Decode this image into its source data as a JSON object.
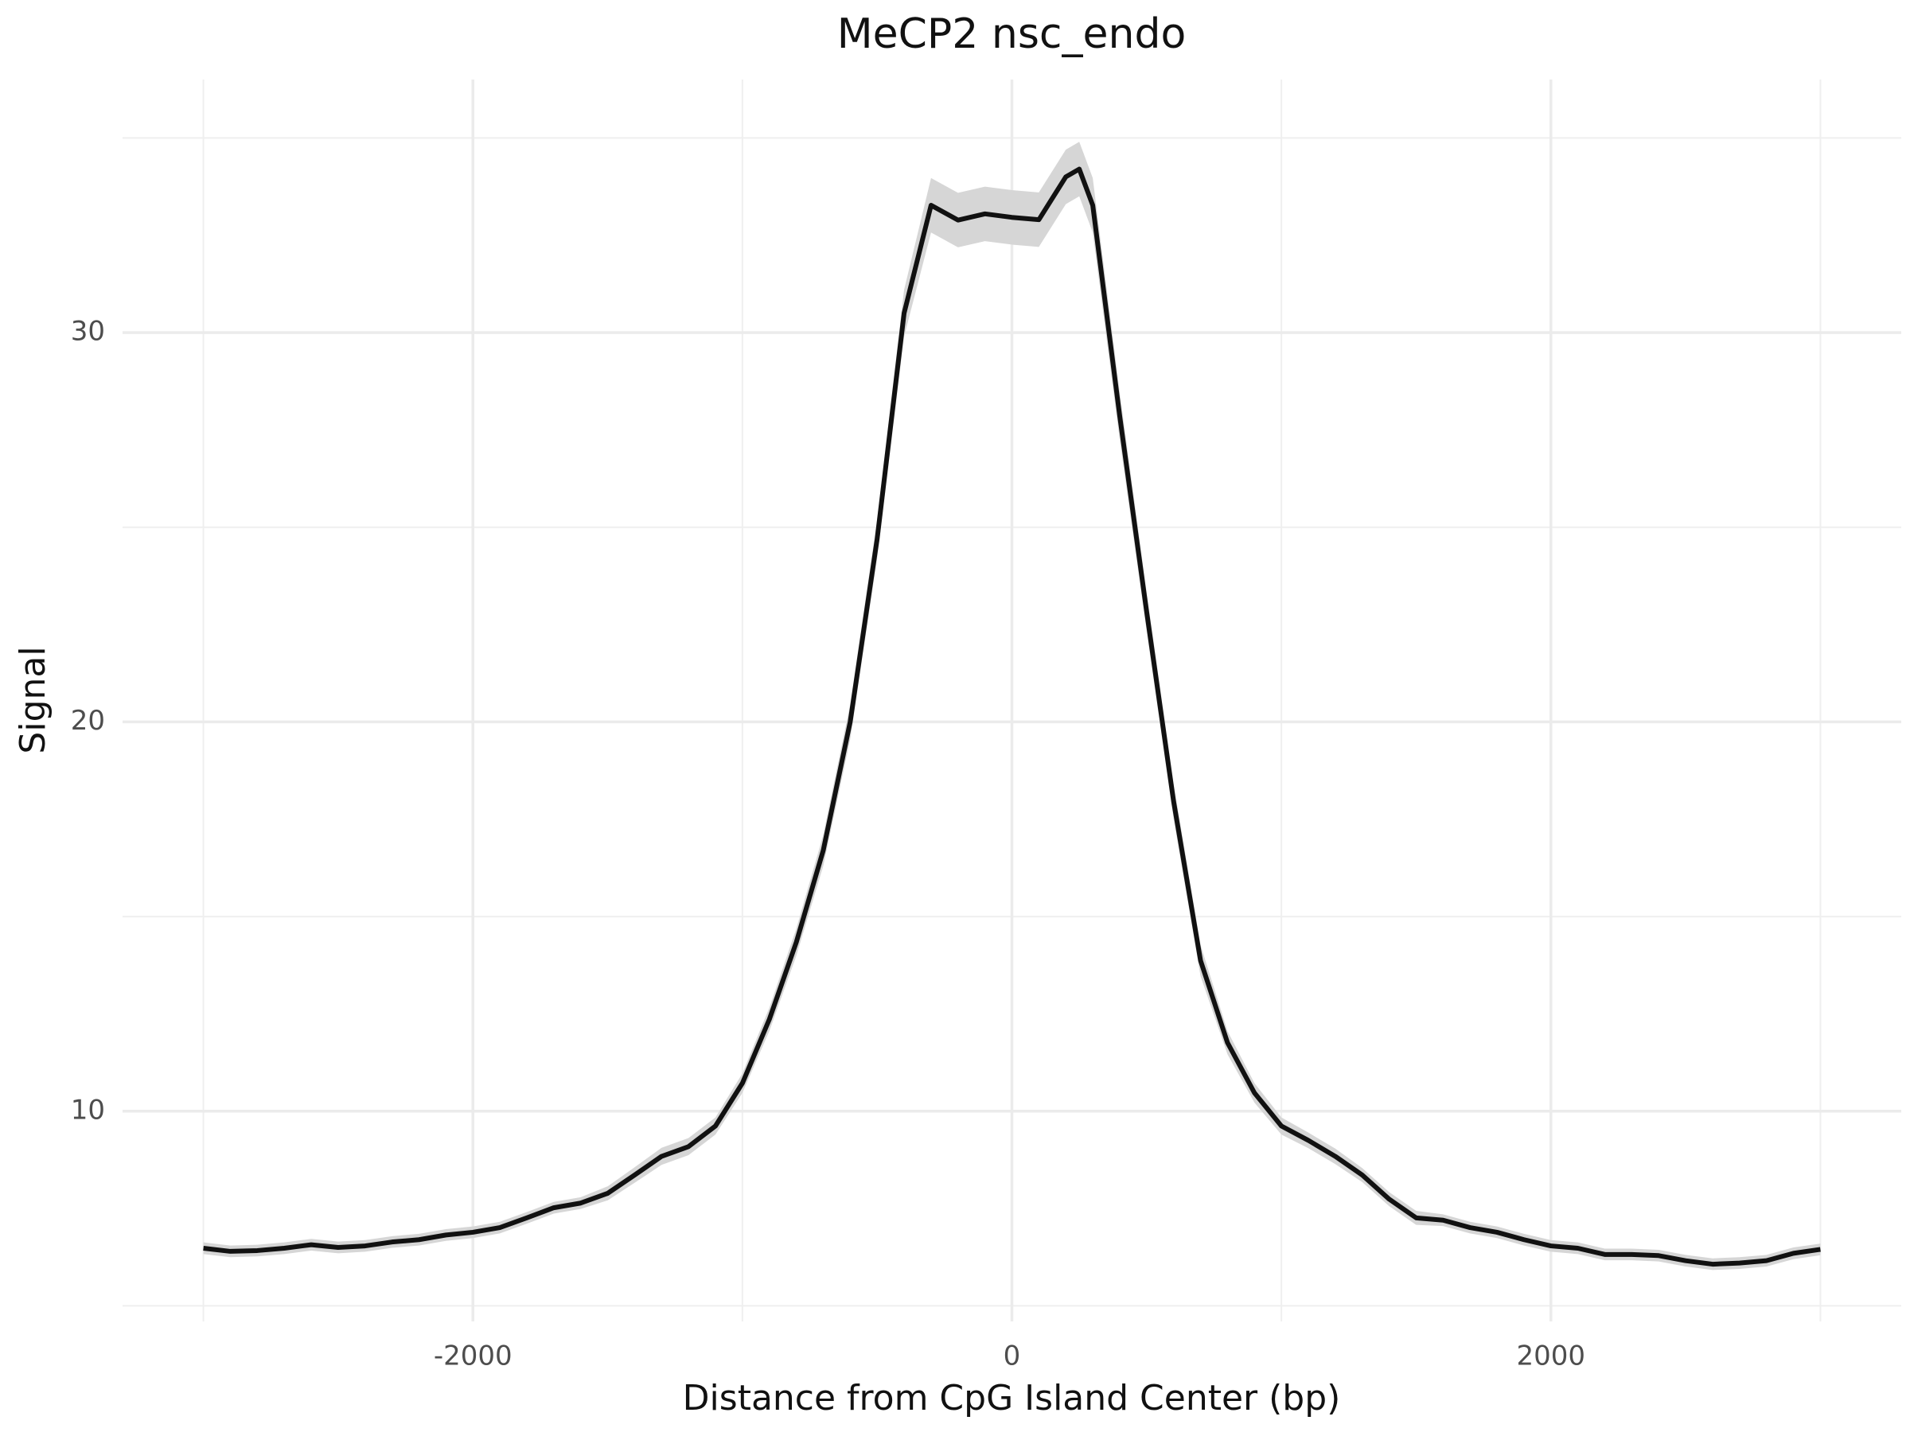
{
  "chart_data": {
    "type": "line",
    "title": "MeCP2 nsc_endo",
    "x_label": "Distance from CpG Island Center (bp)",
    "y_label": "Signal",
    "x": [
      -3000,
      -2900,
      -2800,
      -2700,
      -2600,
      -2500,
      -2400,
      -2300,
      -2200,
      -2100,
      -2000,
      -1900,
      -1800,
      -1700,
      -1600,
      -1500,
      -1400,
      -1300,
      -1200,
      -1100,
      -1000,
      -900,
      -800,
      -700,
      -600,
      -500,
      -400,
      -300,
      -200,
      -100,
      0,
      100,
      200,
      250,
      300,
      400,
      500,
      600,
      700,
      800,
      900,
      1000,
      1100,
      1200,
      1300,
      1400,
      1500,
      1600,
      1700,
      1800,
      1900,
      2000,
      2100,
      2200,
      2300,
      2400,
      2500,
      2600,
      2700,
      2800,
      2900,
      3000
    ],
    "series": [
      {
        "name": "MeCP2 nsc_endo",
        "color": "#111111",
        "ribbon_color": "#d6d6d6",
        "values": [
          6.48,
          6.4,
          6.42,
          6.48,
          6.57,
          6.5,
          6.54,
          6.64,
          6.7,
          6.82,
          6.89,
          7.01,
          7.26,
          7.52,
          7.64,
          7.89,
          8.36,
          8.84,
          9.09,
          9.62,
          10.72,
          12.36,
          14.34,
          16.7,
          20.0,
          24.7,
          30.5,
          33.27,
          32.89,
          33.05,
          32.96,
          32.9,
          34.0,
          34.2,
          33.27,
          27.86,
          22.83,
          17.96,
          13.87,
          11.76,
          10.47,
          9.62,
          9.25,
          8.84,
          8.36,
          7.74,
          7.26,
          7.2,
          7.01,
          6.89,
          6.7,
          6.54,
          6.48,
          6.32,
          6.32,
          6.29,
          6.16,
          6.07,
          6.1,
          6.16,
          6.35,
          6.45
        ],
        "errors": [
          0.15,
          0.15,
          0.15,
          0.15,
          0.15,
          0.15,
          0.15,
          0.15,
          0.15,
          0.15,
          0.15,
          0.15,
          0.15,
          0.15,
          0.15,
          0.18,
          0.2,
          0.22,
          0.22,
          0.22,
          0.25,
          0.3,
          0.35,
          0.4,
          0.45,
          0.5,
          0.6,
          0.7,
          0.7,
          0.7,
          0.7,
          0.7,
          0.7,
          0.7,
          0.7,
          0.6,
          0.5,
          0.45,
          0.4,
          0.3,
          0.25,
          0.22,
          0.2,
          0.2,
          0.18,
          0.18,
          0.18,
          0.15,
          0.15,
          0.15,
          0.15,
          0.15,
          0.15,
          0.15,
          0.15,
          0.15,
          0.15,
          0.15,
          0.15,
          0.15,
          0.15,
          0.15
        ]
      }
    ],
    "xlim": [
      -3300,
      3300
    ],
    "ylim": [
      4.6,
      36.5
    ],
    "xticks": [
      -2000,
      0,
      2000
    ],
    "yticks": [
      10,
      20,
      30
    ],
    "minor_xticks": [
      -3000,
      -1000,
      1000,
      3000
    ],
    "minor_yticks": [
      5,
      15,
      25,
      35
    ],
    "grid": true
  }
}
